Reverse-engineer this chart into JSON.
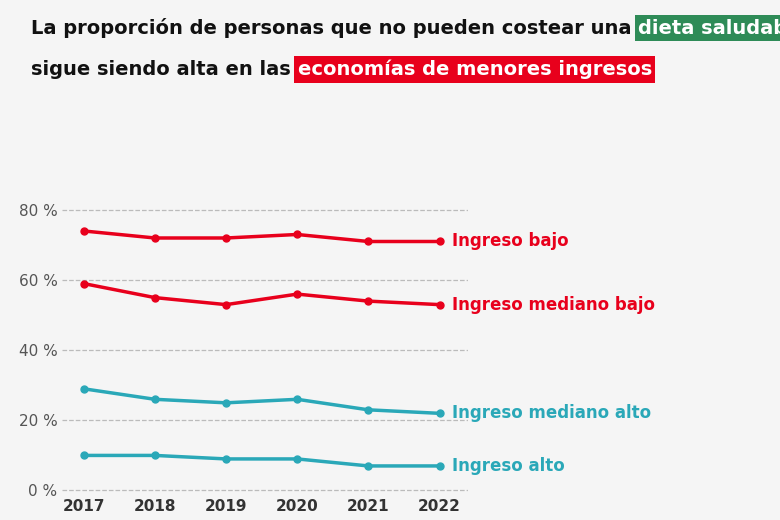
{
  "years": [
    2017,
    2018,
    2019,
    2020,
    2021,
    2022
  ],
  "ingreso_bajo": [
    74,
    72,
    72,
    73,
    71,
    71
  ],
  "ingreso_mediano_bajo": [
    59,
    55,
    53,
    56,
    54,
    53
  ],
  "ingreso_mediano_alto": [
    29,
    26,
    25,
    26,
    23,
    22
  ],
  "ingreso_alto": [
    10,
    10,
    9,
    9,
    7,
    7
  ],
  "color_red": "#E8001C",
  "color_teal": "#2AA8B8",
  "color_bg": "#F5F5F5",
  "color_grid": "#BBBBBB",
  "yticks": [
    0,
    20,
    40,
    60,
    80
  ],
  "ylabel_suffix": " %",
  "title_part1": "La proporción de personas que no pueden costear una ",
  "title_highlight1": "dieta saludable",
  "title_highlight1_bg": "#2E8B57",
  "title_part2": "sigue siendo alta en las ",
  "title_highlight2": "economías de menores ingresos",
  "title_highlight2_bg": "#E8001C",
  "label_bajo": "Ingreso bajo",
  "label_mediano_bajo": "Ingreso mediano bajo",
  "label_mediano_alto": "Ingreso mediano alto",
  "label_alto": "Ingreso alto",
  "line_width": 2.5,
  "marker": "o",
  "marker_size": 5,
  "title_fontsize": 14,
  "label_fontsize": 12,
  "tick_fontsize": 11
}
